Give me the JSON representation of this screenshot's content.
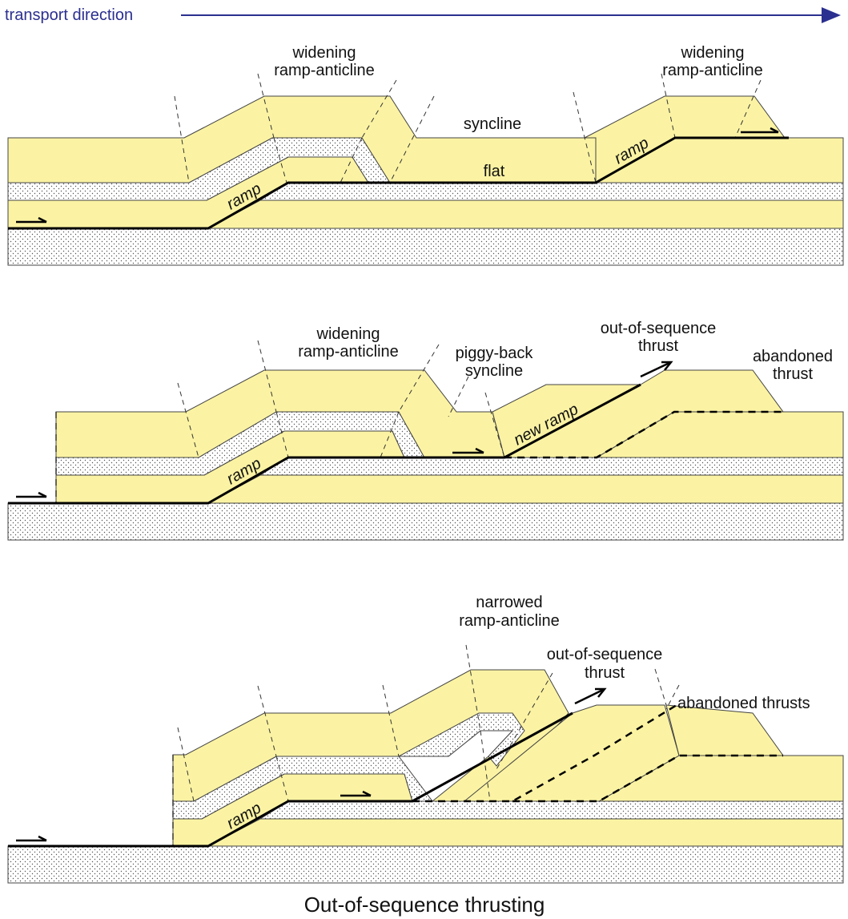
{
  "header": {
    "transport_direction": "transport direction",
    "arrow_color": "#2b2f8f"
  },
  "panel1": {
    "widening_anticline_1": [
      "widening",
      "ramp-anticline"
    ],
    "widening_anticline_2": [
      "widening",
      "ramp-anticline"
    ],
    "syncline": "syncline",
    "flat": "flat",
    "ramp_1": "ramp",
    "ramp_2": "ramp"
  },
  "panel2": {
    "widening_anticline": [
      "widening",
      "ramp-anticline"
    ],
    "piggy_back_syncline": [
      "piggy-back",
      "syncline"
    ],
    "out_of_sequence_thrust": [
      "out-of-sequence",
      "thrust"
    ],
    "abandoned_thrust": [
      "abandoned",
      "thrust"
    ],
    "new_ramp": "new ramp",
    "ramp": "ramp"
  },
  "panel3": {
    "narrowed_anticline": [
      "narrowed",
      "ramp-anticline"
    ],
    "out_of_sequence_thrust": [
      "out-of-sequence",
      "thrust"
    ],
    "abandoned_thrusts": "abandoned thrusts",
    "ramp": "ramp"
  },
  "caption": "Out-of-sequence thrusting",
  "colors": {
    "competent_layer": "#fbf3a3",
    "dotted_layer": "#ffffff",
    "fault": "#000000"
  }
}
